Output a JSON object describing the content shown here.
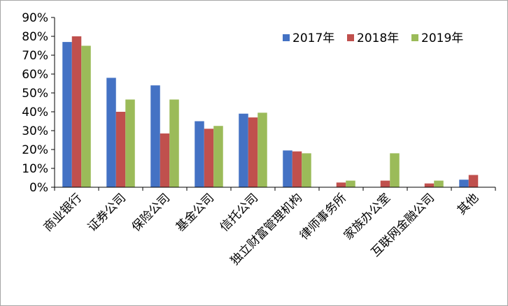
{
  "chart_data": {
    "type": "bar",
    "title": "",
    "xlabel": "",
    "ylabel": "",
    "ylim": [
      0,
      90
    ],
    "y_ticks": [
      "0%",
      "10%",
      "20%",
      "30%",
      "40%",
      "50%",
      "60%",
      "70%",
      "80%",
      "90%"
    ],
    "grid": false,
    "legend_position": "top-right",
    "categories": [
      "商业银行",
      "证券公司",
      "保险公司",
      "基金公司",
      "信托公司",
      "独立财富管理机构",
      "律师事务所",
      "家族办公室",
      "互联网金融公司",
      "其他"
    ],
    "series": [
      {
        "name": "2017年",
        "color": "#4472c4",
        "values": [
          77,
          58,
          54,
          35,
          39,
          19.5,
          0,
          0,
          0,
          4
        ]
      },
      {
        "name": "2018年",
        "color": "#c0504d",
        "values": [
          80,
          40,
          28.5,
          31,
          37,
          19,
          2.5,
          3.5,
          2,
          6.5
        ]
      },
      {
        "name": "2019年",
        "color": "#9bbb59",
        "values": [
          75,
          46.5,
          46.5,
          32.5,
          39.5,
          18,
          3.5,
          18,
          3.5,
          0
        ]
      }
    ]
  }
}
